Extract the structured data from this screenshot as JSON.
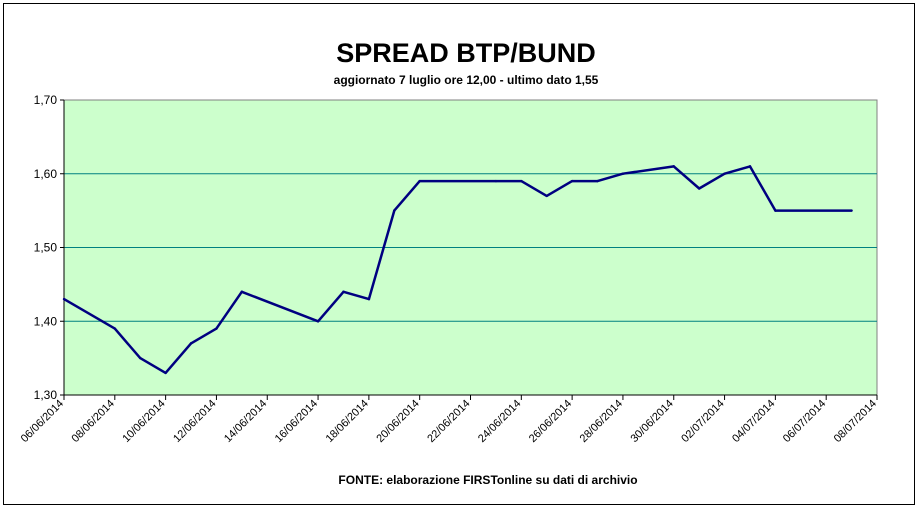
{
  "chart_data": {
    "type": "line",
    "title": "SPREAD BTP/BUND",
    "subtitle": "aggiornato 7 luglio ore 12,00 - ultimo dato 1,55",
    "footer": "FONTE: elaborazione FIRSTonline su dati di archivio",
    "x_tick_labels": [
      "06/06/2014",
      "08/06/2014",
      "10/06/2014",
      "12/06/2014",
      "14/06/2014",
      "16/06/2014",
      "18/06/2014",
      "20/06/2014",
      "22/06/2014",
      "24/06/2014",
      "26/06/2014",
      "28/06/2014",
      "30/06/2014",
      "02/07/2014",
      "04/07/2014",
      "06/07/2014",
      "08/07/2014"
    ],
    "y_tick_labels": [
      "1,30",
      "1,40",
      "1,50",
      "1,60",
      "1,70"
    ],
    "ylim": [
      1.3,
      1.7
    ],
    "y_ticks": [
      1.3,
      1.4,
      1.5,
      1.6,
      1.7
    ],
    "x_range": [
      "2014-06-06",
      "2014-07-08"
    ],
    "grid": true,
    "series": [
      {
        "color": "#000080",
        "points": [
          {
            "x": "2014-06-06",
            "y": 1.43
          },
          {
            "x": "2014-06-08",
            "y": 1.39
          },
          {
            "x": "2014-06-09",
            "y": 1.35
          },
          {
            "x": "2014-06-10",
            "y": 1.33
          },
          {
            "x": "2014-06-11",
            "y": 1.37
          },
          {
            "x": "2014-06-12",
            "y": 1.39
          },
          {
            "x": "2014-06-13",
            "y": 1.44
          },
          {
            "x": "2014-06-16",
            "y": 1.4
          },
          {
            "x": "2014-06-17",
            "y": 1.44
          },
          {
            "x": "2014-06-18",
            "y": 1.43
          },
          {
            "x": "2014-06-19",
            "y": 1.55
          },
          {
            "x": "2014-06-20",
            "y": 1.59
          },
          {
            "x": "2014-06-23",
            "y": 1.59
          },
          {
            "x": "2014-06-24",
            "y": 1.59
          },
          {
            "x": "2014-06-25",
            "y": 1.57
          },
          {
            "x": "2014-06-26",
            "y": 1.59
          },
          {
            "x": "2014-06-27",
            "y": 1.59
          },
          {
            "x": "2014-06-28",
            "y": 1.6
          },
          {
            "x": "2014-06-30",
            "y": 1.61
          },
          {
            "x": "2014-07-01",
            "y": 1.58
          },
          {
            "x": "2014-07-02",
            "y": 1.6
          },
          {
            "x": "2014-07-03",
            "y": 1.61
          },
          {
            "x": "2014-07-04",
            "y": 1.55
          },
          {
            "x": "2014-07-07",
            "y": 1.55
          }
        ]
      }
    ],
    "plot_background": "#ccffcc",
    "gridline_color": "#008080"
  }
}
